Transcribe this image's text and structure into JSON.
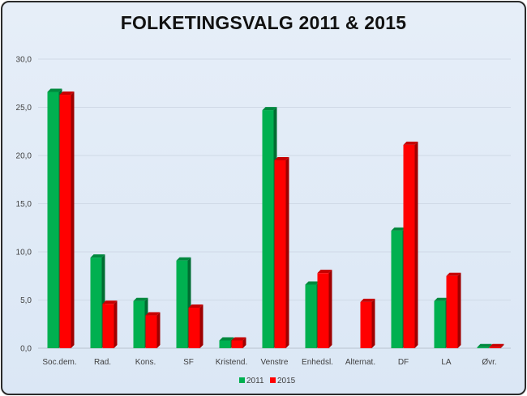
{
  "chart_data": {
    "type": "bar",
    "title": "FOLKETINGSVALG 2011 & 2015",
    "xlabel": "",
    "ylabel": "",
    "ylim": [
      0,
      30
    ],
    "y_ticks": [
      "0,0",
      "5,0",
      "10,0",
      "15,0",
      "20,0",
      "25,0",
      "30,0"
    ],
    "grid": true,
    "legend_position": "bottom",
    "categories": [
      "Soc.dem.",
      "Rad.",
      "Kons.",
      "SF",
      "Kristend.",
      "Venstre",
      "Enhedsl.",
      "Alternat.",
      "DF",
      "LA",
      "Øvr."
    ],
    "series": [
      {
        "name": "2011",
        "color": "#00b050",
        "values": [
          26.6,
          9.4,
          4.9,
          9.1,
          0.8,
          24.7,
          6.6,
          0,
          12.2,
          4.9,
          0.1
        ]
      },
      {
        "name": "2015",
        "color": "#ff0000",
        "values": [
          26.3,
          4.6,
          3.4,
          4.2,
          0.8,
          19.5,
          7.8,
          4.8,
          21.1,
          7.5,
          0.1
        ]
      }
    ]
  }
}
